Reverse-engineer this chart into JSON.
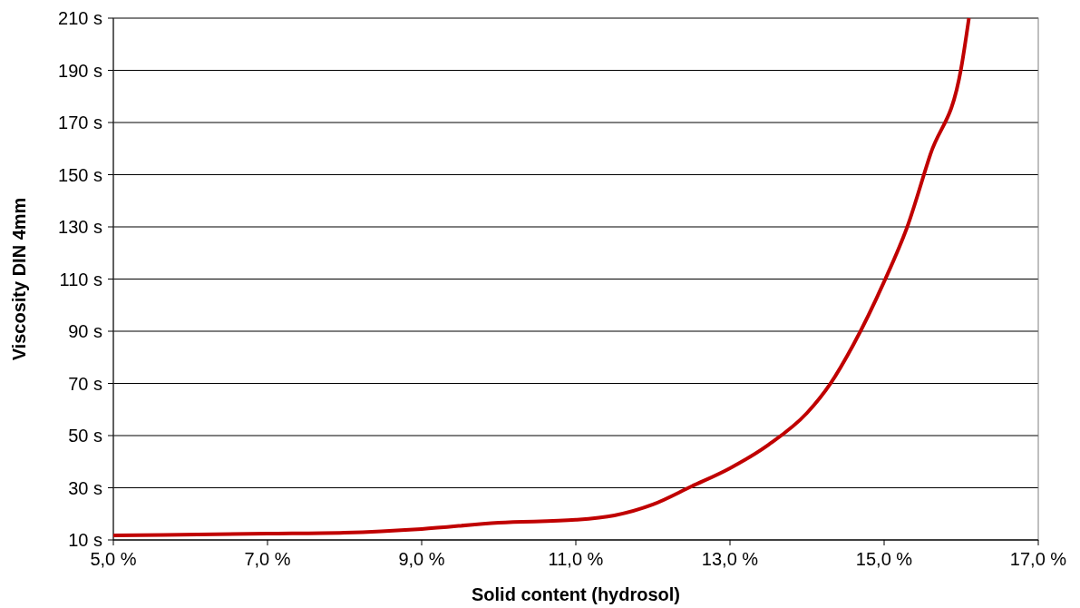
{
  "chart_data": {
    "type": "line",
    "xlabel": "Solid content (hydrosol)",
    "ylabel": "Viscosity DIN 4mm",
    "x": [
      5,
      7,
      8,
      9,
      10,
      11,
      11.5,
      12,
      12.5,
      13,
      13.5,
      14,
      14.3,
      14.6,
      15,
      15.3,
      15.6,
      16,
      16.1
    ],
    "series": [
      {
        "color": "#c00000",
        "values": [
          11.7,
          12.4,
          12.8,
          14.2,
          16.6,
          17.7,
          19.4,
          23.6,
          30.5,
          37.5,
          46.5,
          58.7,
          69.8,
          84.8,
          109,
          130,
          157.8,
          190.9,
          210
        ]
      }
    ],
    "xlim": [
      5,
      17
    ],
    "ylim": [
      10,
      210
    ],
    "xticks": [
      {
        "value": 5,
        "label": "5,0 %"
      },
      {
        "value": 7,
        "label": "7,0 %"
      },
      {
        "value": 9,
        "label": "9,0 %"
      },
      {
        "value": 11,
        "label": "11,0 %"
      },
      {
        "value": 13,
        "label": "13,0 %"
      },
      {
        "value": 15,
        "label": "15,0 %"
      },
      {
        "value": 17,
        "label": "17,0 %"
      }
    ],
    "yticks": [
      {
        "value": 10,
        "label": "10 s"
      },
      {
        "value": 30,
        "label": "30 s"
      },
      {
        "value": 50,
        "label": "50 s"
      },
      {
        "value": 70,
        "label": "70 s"
      },
      {
        "value": 90,
        "label": "90 s"
      },
      {
        "value": 110,
        "label": "110 s"
      },
      {
        "value": 130,
        "label": "130 s"
      },
      {
        "value": 150,
        "label": "150 s"
      },
      {
        "value": 170,
        "label": "170 s"
      },
      {
        "value": 190,
        "label": "190 s"
      },
      {
        "value": 210,
        "label": "210 s"
      }
    ],
    "grid": "y",
    "marker": "none",
    "line_style": "solid"
  }
}
